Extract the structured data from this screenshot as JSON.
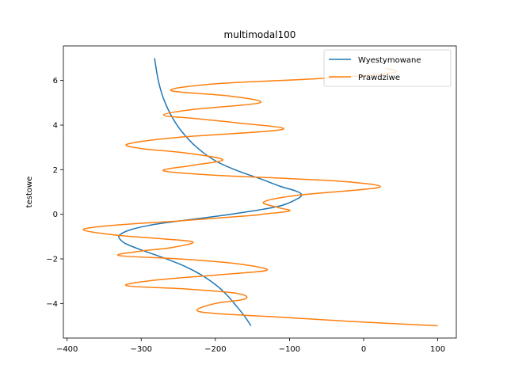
{
  "chart_data": {
    "type": "line",
    "title": "multimodal100",
    "xlabel": "",
    "ylabel": "testowe",
    "xlim": [
      -405,
      125
    ],
    "ylim": [
      -5.55,
      7.55
    ],
    "xticks": [
      -400,
      -300,
      -200,
      -100,
      0,
      100
    ],
    "yticks": [
      -4,
      -2,
      0,
      2,
      4,
      6
    ],
    "grid": false,
    "legend_position": "upper right",
    "series": [
      {
        "name": "Wyestymowane",
        "color": "#1f77b4",
        "points": [
          [
            -282,
            7.0
          ],
          [
            -277,
            6.0
          ],
          [
            -270,
            5.2
          ],
          [
            -259,
            4.4
          ],
          [
            -245,
            3.7
          ],
          [
            -225,
            3.0
          ],
          [
            -200,
            2.4
          ],
          [
            -170,
            1.95
          ],
          [
            -140,
            1.6
          ],
          [
            -112,
            1.25
          ],
          [
            -92,
            1.05
          ],
          [
            -84,
            0.9
          ],
          [
            -88,
            0.72
          ],
          [
            -110,
            0.4
          ],
          [
            -140,
            0.2
          ],
          [
            -180,
            0.0
          ],
          [
            -220,
            -0.18
          ],
          [
            -260,
            -0.35
          ],
          [
            -290,
            -0.5
          ],
          [
            -315,
            -0.7
          ],
          [
            -328,
            -0.9
          ],
          [
            -330,
            -1.05
          ],
          [
            -322,
            -1.3
          ],
          [
            -300,
            -1.6
          ],
          [
            -270,
            -1.95
          ],
          [
            -240,
            -2.35
          ],
          [
            -220,
            -2.7
          ],
          [
            -200,
            -3.15
          ],
          [
            -185,
            -3.6
          ],
          [
            -172,
            -4.1
          ],
          [
            -160,
            -4.6
          ],
          [
            -152,
            -5.0
          ]
        ]
      },
      {
        "name": "Prawdziwe",
        "color": "#ff7f0e",
        "points": [
          [
            100,
            -5.0
          ],
          [
            -20,
            -4.8
          ],
          [
            -120,
            -4.6
          ],
          [
            -200,
            -4.45
          ],
          [
            -225,
            -4.3
          ],
          [
            -200,
            -4.0
          ],
          [
            -160,
            -3.8
          ],
          [
            -170,
            -3.55
          ],
          [
            -240,
            -3.35
          ],
          [
            -320,
            -3.2
          ],
          [
            -280,
            -2.95
          ],
          [
            -190,
            -2.7
          ],
          [
            -130,
            -2.5
          ],
          [
            -175,
            -2.2
          ],
          [
            -250,
            -2.0
          ],
          [
            -330,
            -1.85
          ],
          [
            -300,
            -1.65
          ],
          [
            -260,
            -1.5
          ],
          [
            -230,
            -1.25
          ],
          [
            -270,
            -1.1
          ],
          [
            -330,
            -0.95
          ],
          [
            -378,
            -0.7
          ],
          [
            -340,
            -0.5
          ],
          [
            -250,
            -0.3
          ],
          [
            -150,
            -0.05
          ],
          [
            -138,
            0.0
          ],
          [
            -100,
            0.15
          ],
          [
            -115,
            0.3
          ],
          [
            -135,
            0.55
          ],
          [
            -90,
            0.85
          ],
          [
            20,
            1.2
          ],
          [
            -20,
            1.45
          ],
          [
            -100,
            1.6
          ],
          [
            -200,
            1.75
          ],
          [
            -270,
            1.95
          ],
          [
            -230,
            2.2
          ],
          [
            -190,
            2.45
          ],
          [
            -240,
            2.75
          ],
          [
            -300,
            2.95
          ],
          [
            -318,
            3.15
          ],
          [
            -250,
            3.45
          ],
          [
            -110,
            3.8
          ],
          [
            -170,
            4.1
          ],
          [
            -230,
            4.3
          ],
          [
            -270,
            4.45
          ],
          [
            -230,
            4.7
          ],
          [
            -140,
            5.0
          ],
          [
            -180,
            5.3
          ],
          [
            -260,
            5.55
          ],
          [
            -200,
            5.85
          ],
          [
            -50,
            6.1
          ],
          [
            40,
            6.35
          ],
          [
            30,
            6.55
          ]
        ]
      }
    ]
  }
}
